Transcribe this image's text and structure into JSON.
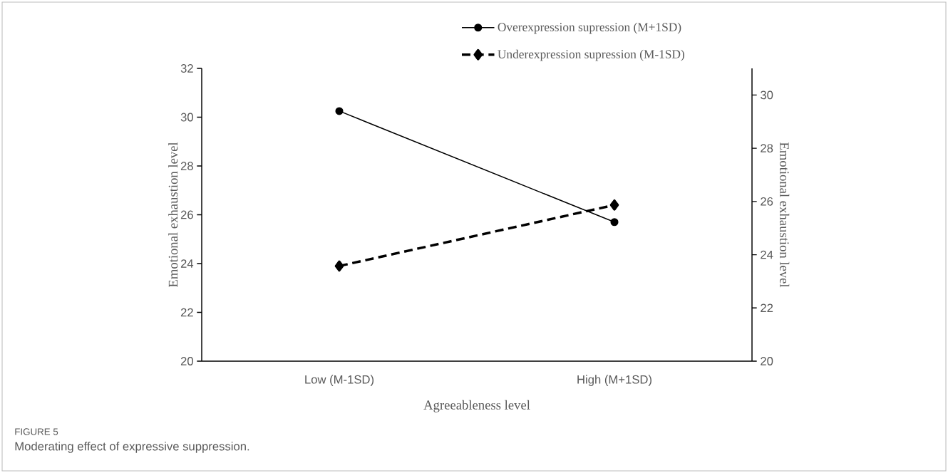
{
  "chart_data": {
    "type": "line",
    "xlabel": "Agreeableness level",
    "ylabel": "Emotional exhaustion level",
    "y2label": "Emotional exhaustion level",
    "categories": [
      "Low (M-1SD)",
      "High (M+1SD)"
    ],
    "series": [
      {
        "name": "Overexpression supression (M+1SD)",
        "color": "#000000",
        "values": [
          30.25,
          25.7
        ],
        "marker": "circle",
        "line_style": "solid"
      },
      {
        "name": "Underexpression supression (M-1SD)",
        "color": "#000000",
        "values": [
          23.9,
          26.4
        ],
        "marker": "diamond",
        "line_style": "dashed"
      }
    ],
    "ylim": [
      20,
      32
    ],
    "yticks": [
      20,
      22,
      24,
      26,
      28,
      30,
      32
    ],
    "y2lim": [
      20,
      31
    ],
    "y2ticks": [
      20,
      22,
      24,
      26,
      28,
      30
    ],
    "legend": "top",
    "annotations": [
      "FIGURE 5",
      "Moderating effect of expressive suppression."
    ]
  }
}
